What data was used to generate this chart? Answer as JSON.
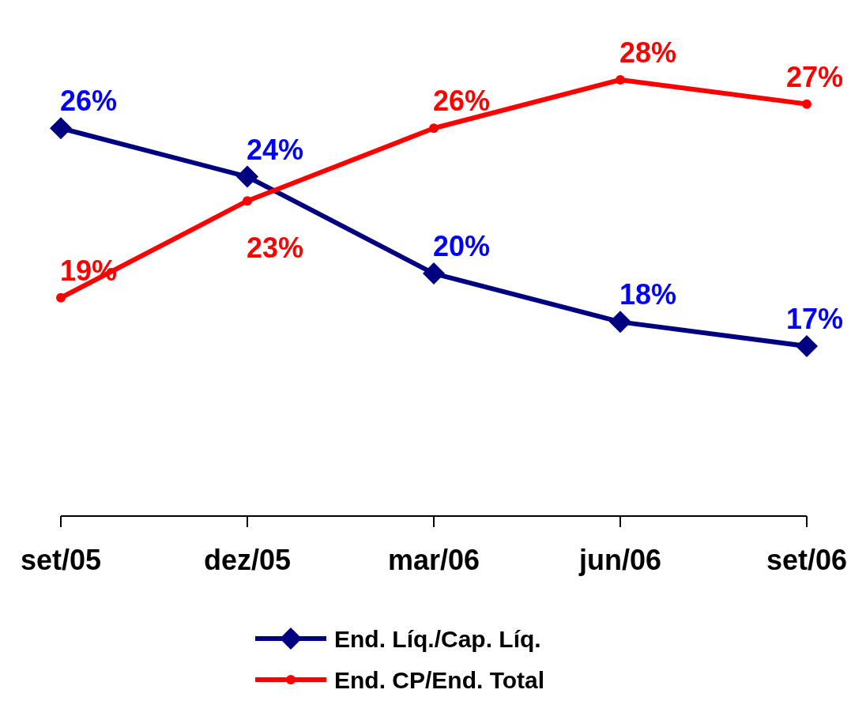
{
  "chart_data": {
    "type": "line",
    "categories": [
      "set/05",
      "dez/05",
      "mar/06",
      "jun/06",
      "set/06"
    ],
    "legend": "bottom",
    "series": [
      {
        "name": "End. Líq./Cap. Líq.",
        "color": "#000080",
        "marker": "diamond",
        "values": [
          26,
          24,
          20,
          18,
          17
        ],
        "value_labels": [
          "26%",
          "24%",
          "20%",
          "18%",
          "17%"
        ]
      },
      {
        "name": "End. CP/End. Total",
        "color": "#ff0000",
        "marker": "circle",
        "values": [
          19,
          23,
          26,
          28,
          27
        ],
        "value_labels": [
          "19%",
          "23%",
          "26%",
          "28%",
          "27%"
        ]
      }
    ]
  }
}
